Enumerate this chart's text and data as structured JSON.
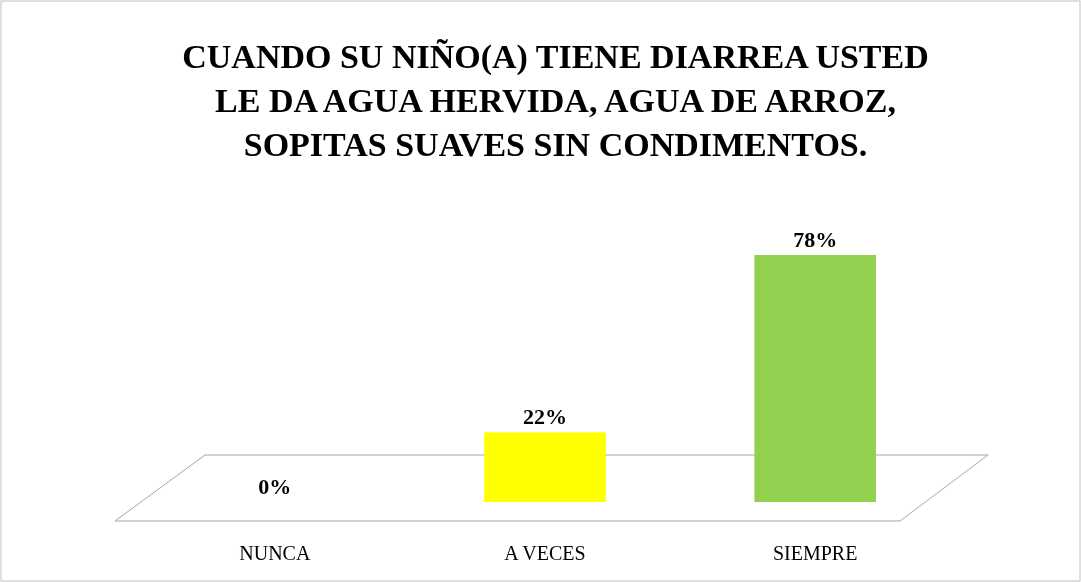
{
  "chart_data": {
    "type": "bar",
    "title": "CUANDO SU NIÑO(A) TIENE DIARREA USTED\nLE DA AGUA HERVIDA, AGUA DE ARROZ,\nSOPITAS SUAVES SIN CONDIMENTOS.",
    "categories": [
      "NUNCA",
      "A VECES",
      "SIEMPRE"
    ],
    "values": [
      0,
      22,
      78
    ],
    "value_labels": [
      "0%",
      "22%",
      "78%"
    ],
    "colors": [
      "#990000",
      "#ffff00",
      "#92d050"
    ]
  }
}
